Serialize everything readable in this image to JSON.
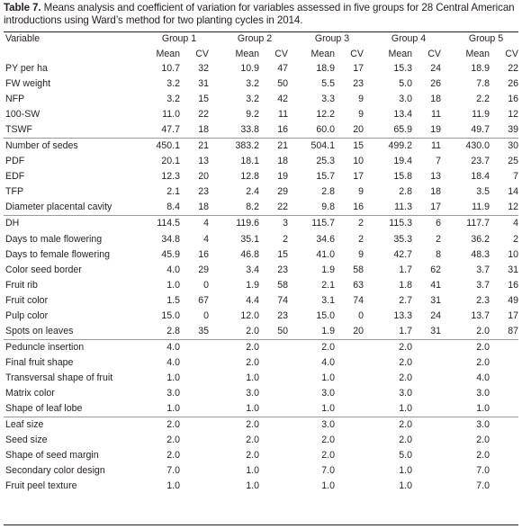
{
  "caption": {
    "label": "Table 7.",
    "text": " Means analysis and coefficient of variation for variables assessed in five groups for 28 Central American introductions using Ward’s method for two planting cycles in 2014."
  },
  "header": {
    "variable": "Variable",
    "groups": [
      "Group 1",
      "Group 2",
      "Group 3",
      "Group 4",
      "Group 5"
    ],
    "mean": "Mean",
    "cv": "CV"
  },
  "rows": [
    {
      "name": "PY per ha",
      "vals": [
        "10.7",
        "32",
        "10.9",
        "47",
        "18.9",
        "17",
        "15.3",
        "24",
        "18.9",
        "22"
      ]
    },
    {
      "name": "FW weight",
      "vals": [
        "3.2",
        "31",
        "3.2",
        "50",
        "5.5",
        "23",
        "5.0",
        "26",
        "7.8",
        "26"
      ]
    },
    {
      "name": "NFP",
      "vals": [
        "3.2",
        "15",
        "3.2",
        "42",
        "3.3",
        "9",
        "3.0",
        "18",
        "2.2",
        "16"
      ]
    },
    {
      "name": "100-SW",
      "vals": [
        "11.0",
        "22",
        "9.2",
        "11",
        "12.2",
        "9",
        "13.4",
        "11",
        "11.9",
        "12"
      ]
    },
    {
      "name": "TSWF",
      "vals": [
        "47.7",
        "18",
        "33.8",
        "16",
        "60.0",
        "20",
        "65.9",
        "19",
        "49.7",
        "39"
      ]
    },
    {
      "name": "Number of sedes",
      "sep": true,
      "vals": [
        "450.1",
        "21",
        "383.2",
        "21",
        "504.1",
        "15",
        "499.2",
        "11",
        "430.0",
        "30"
      ]
    },
    {
      "name": "PDF",
      "vals": [
        "20.1",
        "13",
        "18.1",
        "18",
        "25.3",
        "10",
        "19.4",
        "7",
        "23.7",
        "25"
      ]
    },
    {
      "name": "EDF",
      "vals": [
        "12.3",
        "20",
        "12.8",
        "19",
        "15.7",
        "17",
        "15.8",
        "13",
        "18.4",
        "7"
      ]
    },
    {
      "name": "TFP",
      "vals": [
        "2.1",
        "23",
        "2.4",
        "29",
        "2.8",
        "9",
        "2.8",
        "18",
        "3.5",
        "14"
      ]
    },
    {
      "name": "Diameter placental cavity",
      "vals": [
        "8.4",
        "18",
        "8.2",
        "22",
        "9.8",
        "16",
        "11.3",
        "17",
        "11.9",
        "12"
      ]
    },
    {
      "name": "DH",
      "sep": true,
      "vals": [
        "114.5",
        "4",
        "119.6",
        "3",
        "115.7",
        "2",
        "115.3",
        "6",
        "117.7",
        "4"
      ]
    },
    {
      "name": "Days to male flowering",
      "vals": [
        "34.8",
        "4",
        "35.1",
        "2",
        "34.6",
        "2",
        "35.3",
        "2",
        "36.2",
        "2"
      ]
    },
    {
      "name": "Days to female flowering",
      "vals": [
        "45.9",
        "16",
        "46.8",
        "15",
        "41.0",
        "9",
        "42.7",
        "8",
        "48.3",
        "10"
      ]
    },
    {
      "name": "Color seed border",
      "vals": [
        "4.0",
        "29",
        "3.4",
        "23",
        "1.9",
        "58",
        "1.7",
        "62",
        "3.7",
        "31"
      ]
    },
    {
      "name": "Fruit rib",
      "vals": [
        "1.0",
        "0",
        "1.9",
        "58",
        "2.1",
        "63",
        "1.8",
        "41",
        "3.7",
        "16"
      ]
    },
    {
      "name": "Fruit color",
      "vals": [
        "1.5",
        "67",
        "4.4",
        "74",
        "3.1",
        "74",
        "2.7",
        "31",
        "2.3",
        "49"
      ]
    },
    {
      "name": "Pulp color",
      "vals": [
        "15.0",
        "0",
        "12.0",
        "23",
        "15.0",
        "0",
        "13.3",
        "24",
        "13.7",
        "17"
      ]
    },
    {
      "name": "Spots on leaves",
      "vals": [
        "2.8",
        "35",
        "2.0",
        "50",
        "1.9",
        "20",
        "1.7",
        "31",
        "2.0",
        "87"
      ]
    },
    {
      "name": "Peduncle insertion",
      "sep": true,
      "vals": [
        "4.0",
        "",
        "2.0",
        "",
        "2.0",
        "",
        "2.0",
        "",
        "2.0",
        ""
      ]
    },
    {
      "name": "Final fruit shape",
      "vals": [
        "4.0",
        "",
        "2.0",
        "",
        "4.0",
        "",
        "2.0",
        "",
        "2.0",
        ""
      ]
    },
    {
      "name": "Transversal shape of fruit",
      "vals": [
        "1.0",
        "",
        "1.0",
        "",
        "1.0",
        "",
        "2.0",
        "",
        "4.0",
        ""
      ]
    },
    {
      "name": "Matrix color",
      "vals": [
        "3.0",
        "",
        "3.0",
        "",
        "3.0",
        "",
        "3.0",
        "",
        "3.0",
        ""
      ]
    },
    {
      "name": "Shape of leaf lobe",
      "vals": [
        "1.0",
        "",
        "1.0",
        "",
        "1.0",
        "",
        "1.0",
        "",
        "1.0",
        ""
      ]
    },
    {
      "name": "Leaf size",
      "sep": true,
      "vals": [
        "2.0",
        "",
        "2.0",
        "",
        "3.0",
        "",
        "2.0",
        "",
        "3.0",
        ""
      ]
    },
    {
      "name": "Seed size",
      "vals": [
        "2.0",
        "",
        "2.0",
        "",
        "2.0",
        "",
        "2.0",
        "",
        "2.0",
        ""
      ]
    },
    {
      "name": "Shape of seed margin",
      "vals": [
        "2.0",
        "",
        "2.0",
        "",
        "2.0",
        "",
        "5.0",
        "",
        "2.0",
        ""
      ]
    },
    {
      "name": "Secondary color design",
      "vals": [
        "7.0",
        "",
        "1.0",
        "",
        "7.0",
        "",
        "1.0",
        "",
        "7.0",
        ""
      ]
    },
    {
      "name": "Fruit peel texture",
      "vals": [
        "1.0",
        "",
        "1.0",
        "",
        "1.0",
        "",
        "1.0",
        "",
        "7.0",
        ""
      ]
    }
  ]
}
